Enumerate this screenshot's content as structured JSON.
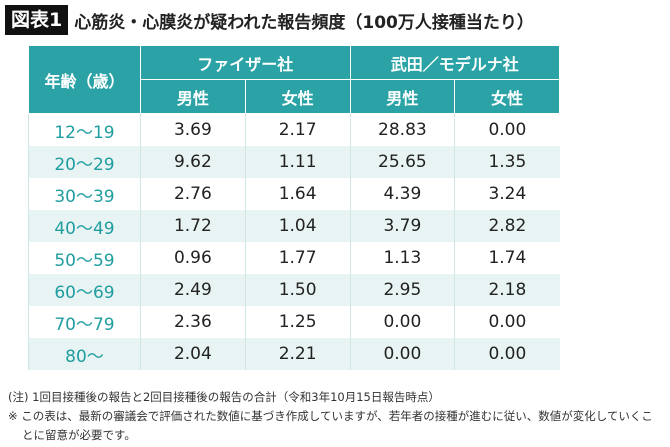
{
  "header": {
    "label": "図表1",
    "title": "心筋炎・心膜炎が疑われた報告頻度（100万人接種当たり）"
  },
  "table": {
    "corner": "年齢（歳）",
    "groups": [
      "ファイザー社",
      "武田／モデルナ社"
    ],
    "subheaders": [
      "男性",
      "女性",
      "男性",
      "女性"
    ],
    "rows": [
      [
        "12〜19",
        "3.69",
        "2.17",
        "28.83",
        "0.00"
      ],
      [
        "20〜29",
        "9.62",
        "1.11",
        "25.65",
        "1.35"
      ],
      [
        "30〜39",
        "2.76",
        "1.64",
        "4.39",
        "3.24"
      ],
      [
        "40〜49",
        "1.72",
        "1.04",
        "3.79",
        "2.82"
      ],
      [
        "50〜59",
        "0.96",
        "1.77",
        "1.13",
        "1.74"
      ],
      [
        "60〜69",
        "2.49",
        "1.50",
        "2.95",
        "2.18"
      ],
      [
        "70〜79",
        "2.36",
        "1.25",
        "0.00",
        "0.00"
      ],
      [
        "80〜",
        "2.04",
        "2.21",
        "0.00",
        "0.00"
      ]
    ]
  },
  "notes": [
    "(注) 1回目接種後の報告と2回目接種後の報告の合計（令和3年10月15日報告時点）",
    "※ この表は、最新の審議会で評価された数値に基づき作成していますが、若年者の接種が進むに従い、数値が変化していくことに留意が必要です。"
  ]
}
